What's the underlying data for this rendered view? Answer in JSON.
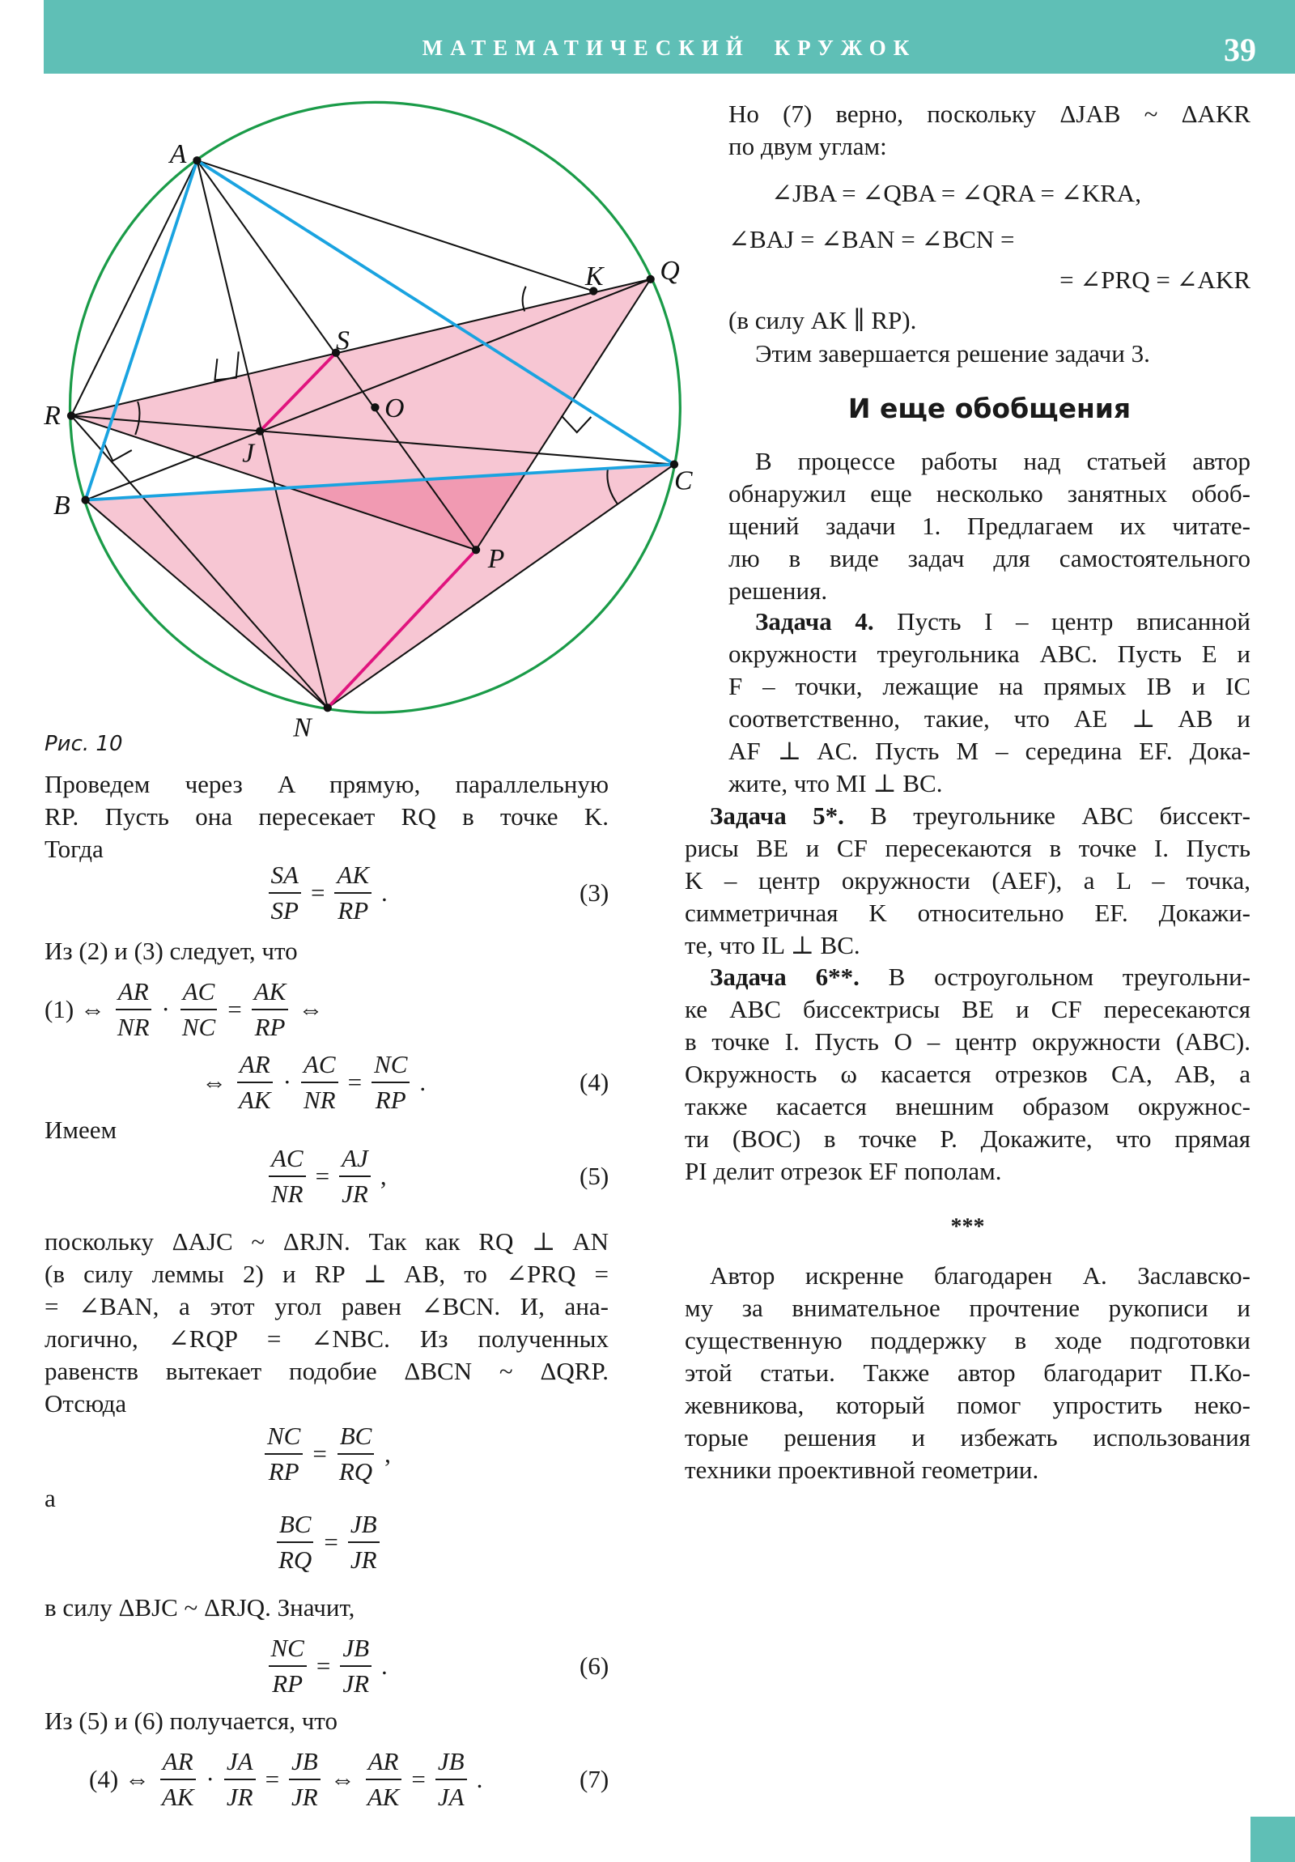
{
  "header": {
    "title": "МАТЕМАТИЧЕСКИЙ КРУЖОК",
    "page_number": "39"
  },
  "colors": {
    "header": "#5fbfb6",
    "circle": "#1a9b48",
    "blue_lines": "#1aa3e0",
    "magenta_lines": "#e0147e",
    "pink_fill": "#f7c6d3",
    "overlap_fill": "#f19ab2"
  },
  "figure": {
    "caption": "Рис. 10",
    "points": [
      "A",
      "K",
      "Q",
      "S",
      "O",
      "R",
      "J",
      "C",
      "B",
      "P",
      "N"
    ]
  },
  "left": {
    "p1": [
      "Проведем через A прямую, параллельную",
      "RP. Пусть она пересекает RQ в точке K.",
      "Тогда"
    ],
    "eq3": {
      "tokens": [
        {
          "n": "SA",
          "d": "SP"
        },
        "=",
        {
          "n": "AK",
          "d": "RP"
        },
        "."
      ],
      "number": "(3)"
    },
    "p2": [
      "Из (2) и (3) следует, что"
    ],
    "eq1": {
      "tokens": [
        "(1) ⇔",
        {
          "n": "AR",
          "d": "NR"
        },
        "·",
        {
          "n": "AC",
          "d": "NC"
        },
        "=",
        {
          "n": "AK",
          "d": "RP"
        },
        "⇔"
      ]
    },
    "eq4": {
      "tokens": [
        "⇔",
        {
          "n": "AR",
          "d": "AK"
        },
        "·",
        {
          "n": "AC",
          "d": "NR"
        },
        "=",
        {
          "n": "NC",
          "d": "RP"
        },
        "."
      ],
      "number": "(4)"
    },
    "p3": [
      "Имеем"
    ],
    "eq5": {
      "tokens": [
        {
          "n": "AC",
          "d": "NR"
        },
        "=",
        {
          "n": "AJ",
          "d": "JR"
        },
        ","
      ],
      "number": "(5)"
    },
    "p4": [
      "поскольку ΔAJC ~ ΔRJN. Так как RQ ⊥ AN",
      "(в силу леммы 2) и RP ⊥ AB, то ∠PRQ =",
      "= ∠BAN, а этот угол равен ∠BCN. И, ана-",
      "логично, ∠RQP = ∠NBC. Из полученных",
      "равенств вытекает подобие ΔBCN ~ ΔQRP.",
      "Отсюда"
    ],
    "eqA": {
      "tokens": [
        {
          "n": "NC",
          "d": "RP"
        },
        "=",
        {
          "n": "BC",
          "d": "RQ"
        },
        ","
      ]
    },
    "p5": [
      "а"
    ],
    "eqB": {
      "tokens": [
        {
          "n": "BC",
          "d": "RQ"
        },
        "=",
        {
          "n": "JB",
          "d": "JR"
        }
      ]
    },
    "p6": [
      "в силу ΔBJC ~ ΔRJQ. Значит,"
    ],
    "eq6": {
      "tokens": [
        {
          "n": "NC",
          "d": "RP"
        },
        "=",
        {
          "n": "JB",
          "d": "JR"
        },
        "."
      ],
      "number": "(6)"
    },
    "p7": [
      "Из (5) и (6) получается, что"
    ],
    "eq7": {
      "tokens": [
        "(4) ⇔",
        {
          "n": "AR",
          "d": "AK"
        },
        "·",
        {
          "n": "JA",
          "d": "JR"
        },
        "=",
        {
          "n": "JB",
          "d": "JR"
        },
        "⇔",
        {
          "n": "AR",
          "d": "AK"
        },
        "=",
        {
          "n": "JB",
          "d": "JA"
        },
        "."
      ],
      "number": "(7)"
    }
  },
  "right": {
    "r1": [
      "Но (7) верно, поскольку ΔJAB ~ ΔAKR",
      "по двум углам:"
    ],
    "m1": [
      "∠JBA = ∠QBA = ∠QRA = ∠KRA,"
    ],
    "m2": [
      "∠BAJ = ∠BAN = ∠BCN ="
    ],
    "m3": [
      "= ∠PRQ = ∠AKR"
    ],
    "r2": [
      "(в силу AK ∥ RP)."
    ],
    "r3": [
      "Этим завершается решение задачи 3."
    ],
    "heading": "И еще обобщения",
    "r4": [
      "В процессе работы над статьей автор",
      "обнаружил еще несколько занятных обоб-",
      "щений задачи 1. Предлагаем их читате-",
      "лю в виде задач для самостоятельного",
      "решения."
    ],
    "task4": {
      "title": "Задача 4.",
      "lines": [
        " Пусть I – центр вписанной",
        "окружности треугольника ABC. Пусть E и",
        "F – точки, лежащие на прямых IB и IC",
        "соответственно, такие, что AE ⊥ AB и",
        "AF ⊥ AC. Пусть M – середина EF. Дока-",
        "жите, что MI ⊥ BC."
      ]
    },
    "task5": {
      "title": "Задача 5*.",
      "lines": [
        " В треугольнике ABC биссект-",
        "рисы BE и CF пересекаются в точке I. Пусть",
        "K – центр окружности (AEF), а L – точка,",
        "симметричная K относительно EF. Докажи-",
        "те, что IL ⊥ BC."
      ]
    },
    "task6": {
      "title": "Задача 6**.",
      "lines": [
        " В остроугольном треугольни-",
        "ке ABC биссектрисы BE и CF пересекаются",
        "в точке I. Пусть O – центр окружности (ABC).",
        "Окружность ω касается отрезков CA, AB, а",
        "также касается внешним образом окружнос-",
        "ти (BOC) в точке P. Докажите, что прямая",
        "PI делит отрезок EF пополам."
      ]
    },
    "stars": "***",
    "ack": [
      "Автор искренне благодарен А. Заславско-",
      "му за внимательное прочтение рукописи и",
      "существенную поддержку в ходе подготовки",
      "этой статьи. Также автор благодарит П.Ко-",
      "жевникова, который помог упростить неко-",
      "торые решения и избежать использования",
      "техники проективной геометрии."
    ]
  }
}
